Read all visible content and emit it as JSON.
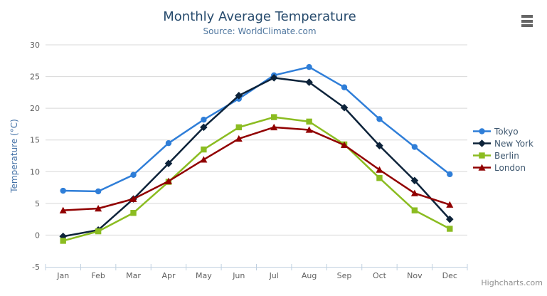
{
  "chart": {
    "title": "Monthly Average Temperature",
    "subtitle": "Source: WorldClimate.com",
    "credits": "Highcharts.com",
    "export_menu_icon": "hamburger-icon"
  },
  "chart_data": {
    "type": "line",
    "title": "Monthly Average Temperature",
    "subtitle": "Source: WorldClimate.com",
    "xlabel": "",
    "ylabel": "Temperature (°C)",
    "categories": [
      "Jan",
      "Feb",
      "Mar",
      "Apr",
      "May",
      "Jun",
      "Jul",
      "Aug",
      "Sep",
      "Oct",
      "Nov",
      "Dec"
    ],
    "series": [
      {
        "name": "Tokyo",
        "color": "#2f7ed8",
        "marker": "circle",
        "values": [
          7.0,
          6.9,
          9.5,
          14.5,
          18.2,
          21.5,
          25.2,
          26.5,
          23.3,
          18.3,
          13.9,
          9.6
        ]
      },
      {
        "name": "New York",
        "color": "#0d233a",
        "marker": "diamond",
        "values": [
          -0.2,
          0.8,
          5.7,
          11.3,
          17.0,
          22.0,
          24.8,
          24.1,
          20.1,
          14.1,
          8.6,
          2.5
        ]
      },
      {
        "name": "Berlin",
        "color": "#8bbc21",
        "marker": "square",
        "values": [
          -0.9,
          0.6,
          3.5,
          8.4,
          13.5,
          17.0,
          18.6,
          17.9,
          14.3,
          9.0,
          3.9,
          1.0
        ]
      },
      {
        "name": "London",
        "color": "#910000",
        "marker": "triangle",
        "values": [
          3.9,
          4.2,
          5.7,
          8.5,
          11.9,
          15.2,
          17.0,
          16.6,
          14.2,
          10.3,
          6.6,
          4.8
        ]
      }
    ],
    "ylim": [
      -5,
      30
    ],
    "y_ticks": [
      -5,
      0,
      5,
      10,
      15,
      20,
      25,
      30
    ],
    "grid": true,
    "legend_position": "right"
  },
  "theme": {
    "title_color": "#274b6d",
    "subtitle_color": "#4d759e",
    "axis_label_color": "#606060",
    "y_axis_title_color": "#4572a7",
    "grid_color": "#d8d8d8",
    "axis_line_color": "#c0d0e0",
    "legend_text_color": "#3e576f",
    "credits_color": "#909090",
    "background_color": "#ffffff"
  }
}
